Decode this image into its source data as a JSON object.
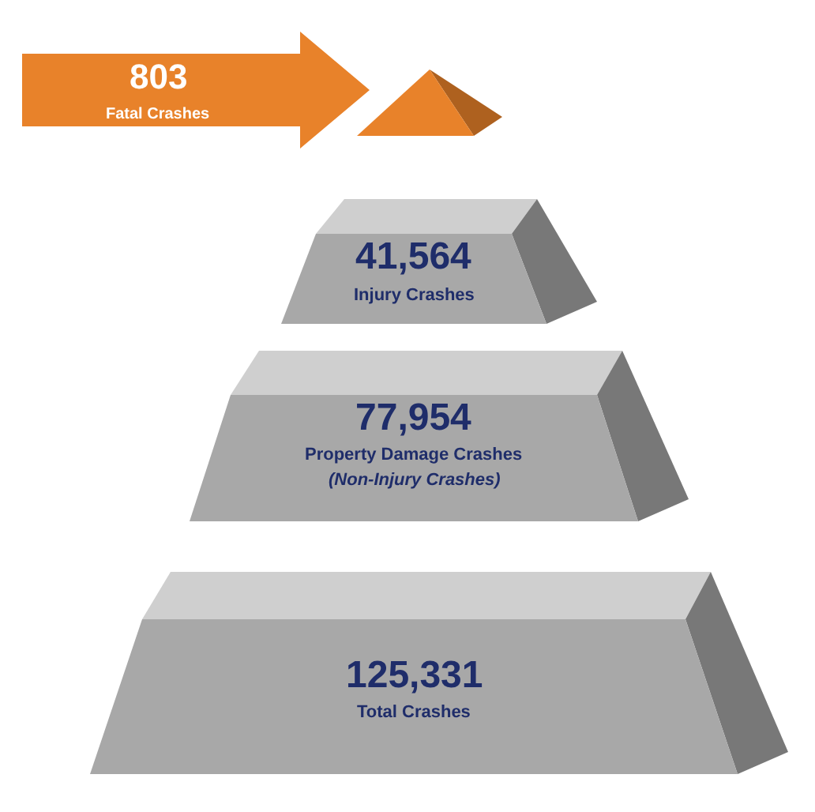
{
  "chart_data": {
    "type": "other",
    "categories": [
      "Fatal Crashes",
      "Injury Crashes",
      "Property Damage Crashes",
      "Total Crashes"
    ],
    "values": [
      803,
      41564,
      77954,
      125331
    ],
    "value_labels": [
      "803",
      "41,564",
      "77,954",
      "125,331"
    ],
    "colors": [
      "#e8822a",
      "#a8a8a8",
      "#a8a8a8",
      "#a8a8a8"
    ],
    "annotations": [
      {
        "text": "(Non-Injury Crashes)",
        "x": "Property Damage Crashes"
      }
    ]
  }
}
